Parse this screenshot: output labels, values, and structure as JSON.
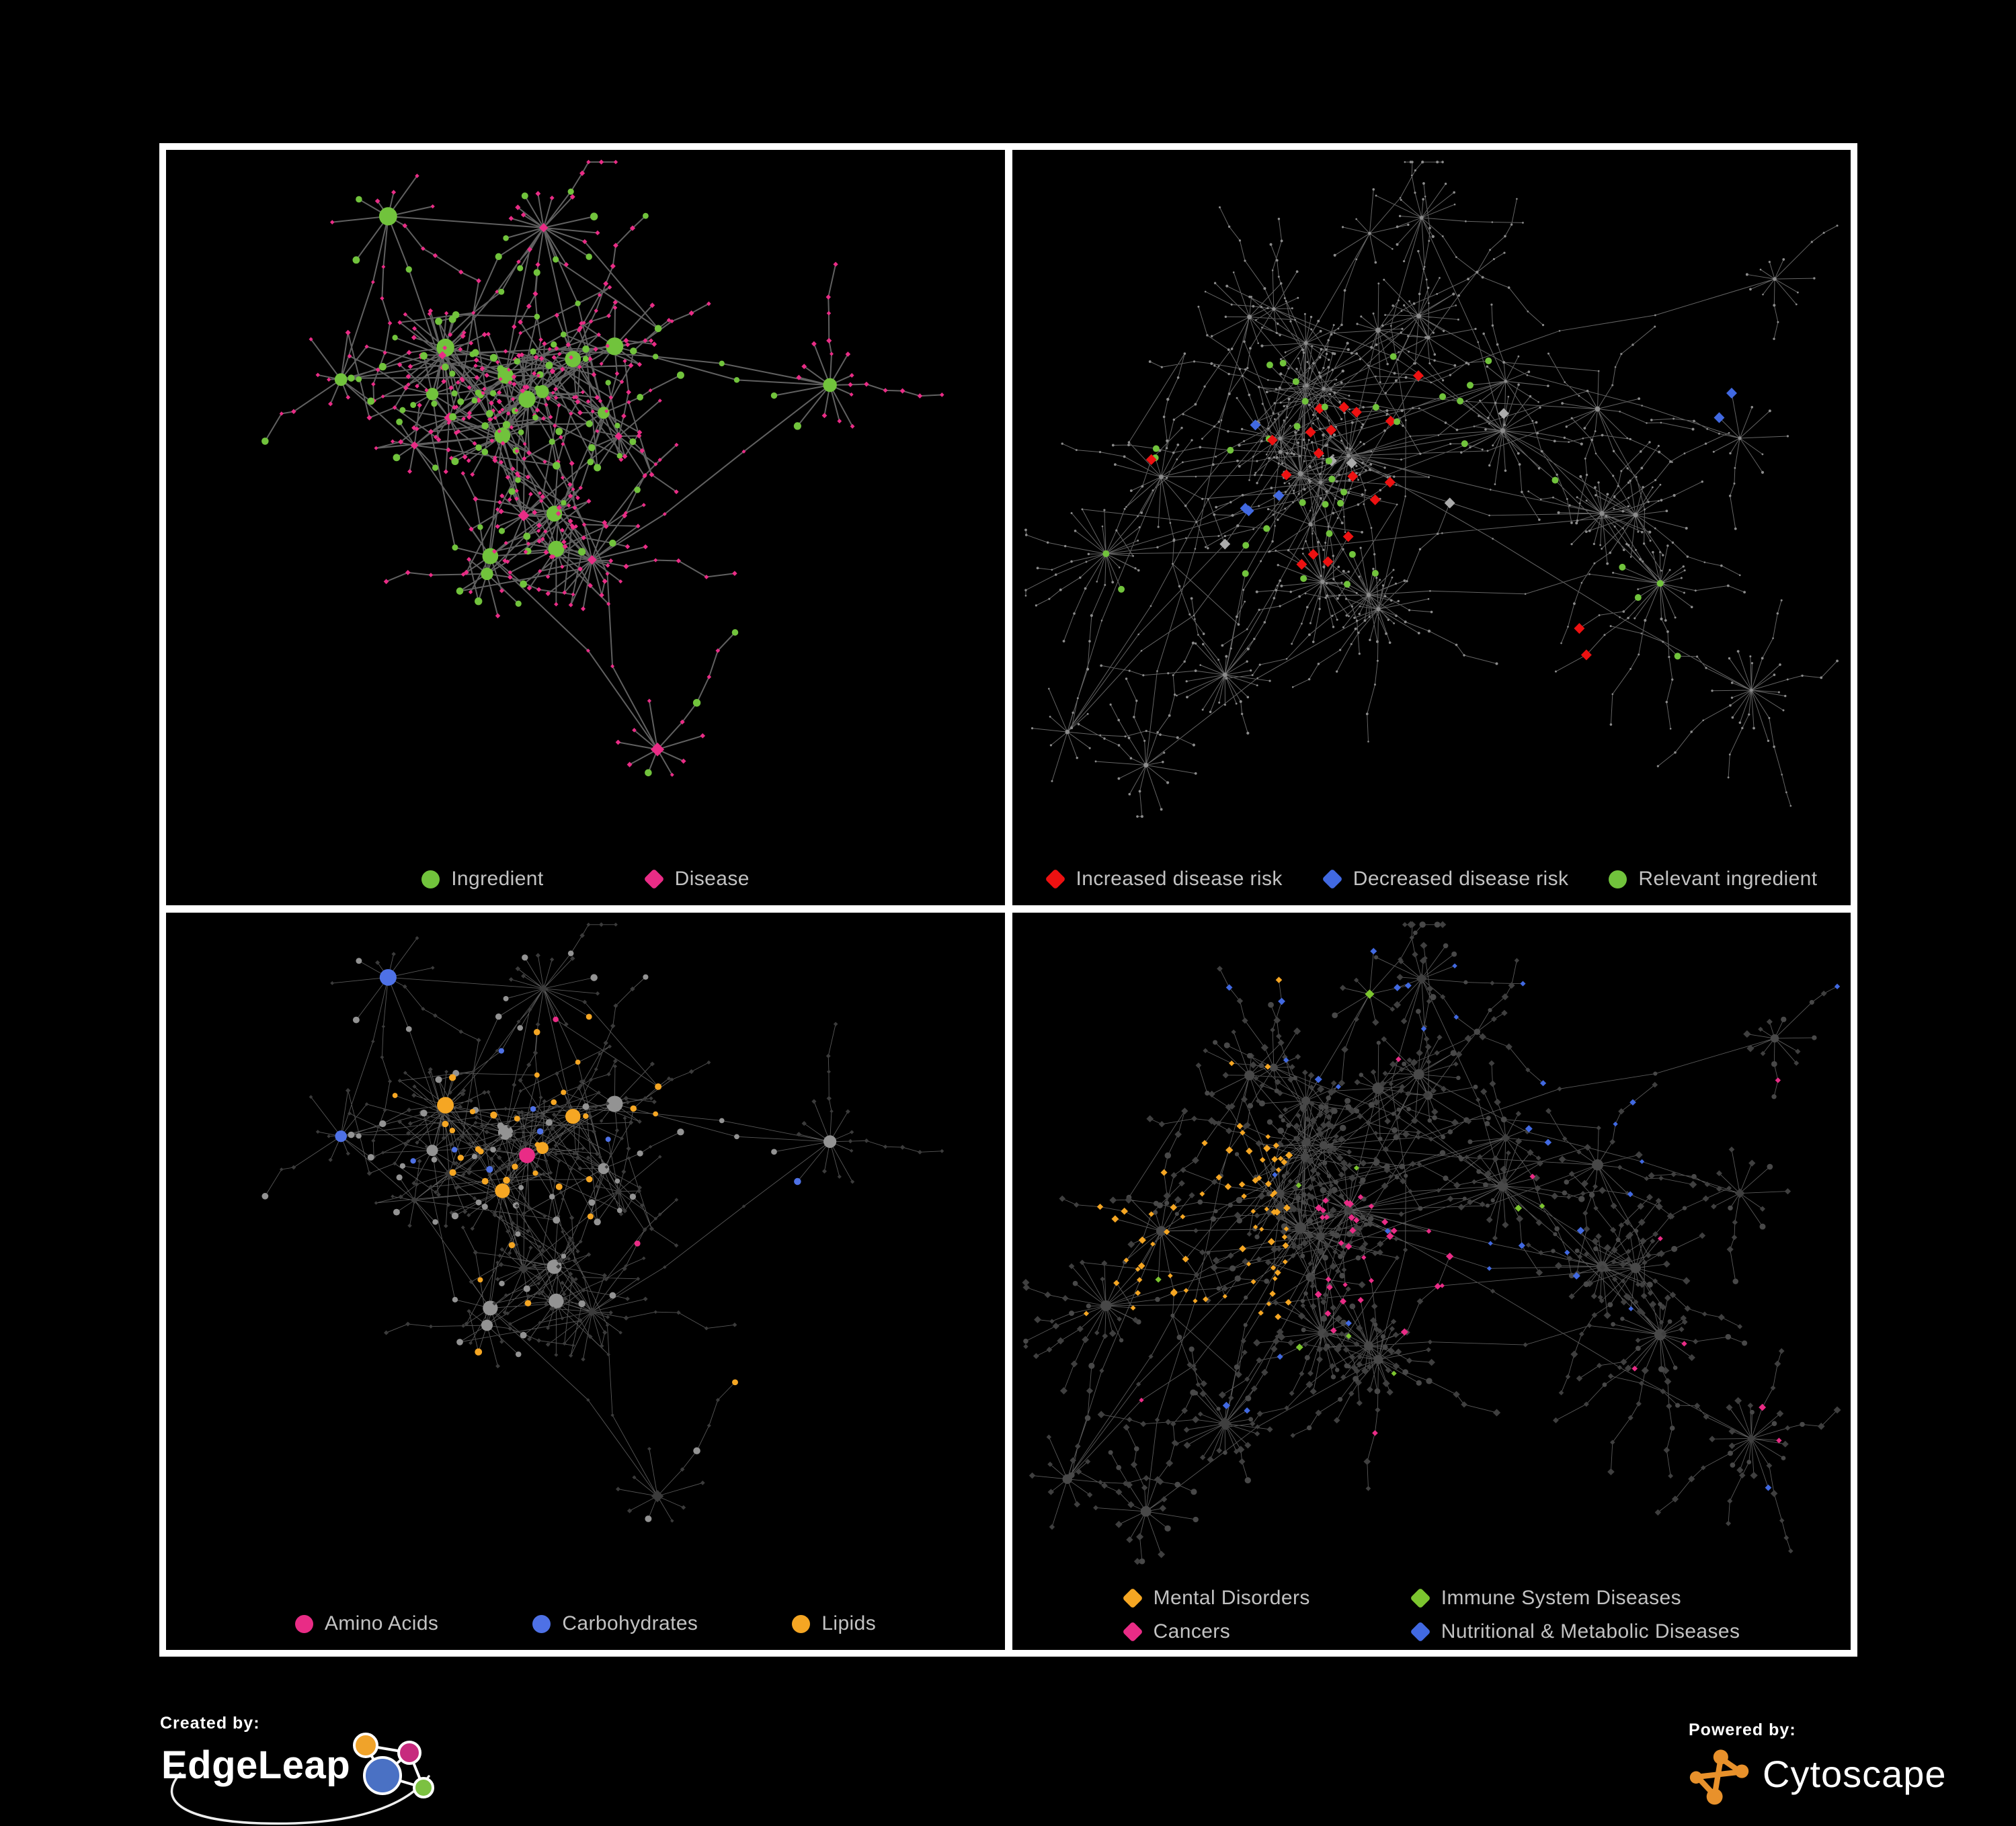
{
  "figure": {
    "panels": [
      {
        "name": "ingredient-disease-network",
        "legend": [
          {
            "label": "Ingredient",
            "shape": "circle",
            "color": "#71C33C"
          },
          {
            "label": "Disease",
            "shape": "diamond",
            "color": "#E92C86"
          }
        ]
      },
      {
        "name": "disease-risk-network",
        "legend": [
          {
            "label": "Increased disease risk",
            "shape": "diamond",
            "color": "#ED1111"
          },
          {
            "label": "Decreased disease risk",
            "shape": "diamond",
            "color": "#4169E1"
          },
          {
            "label": "Relevant ingredient",
            "shape": "circle",
            "color": "#71C33C"
          }
        ]
      },
      {
        "name": "nutrient-class-network",
        "legend": [
          {
            "label": "Amino Acids",
            "shape": "circle",
            "color": "#E92C86"
          },
          {
            "label": "Carbohydrates",
            "shape": "circle",
            "color": "#4E71E6"
          },
          {
            "label": "Lipids",
            "shape": "circle",
            "color": "#F5A623"
          }
        ]
      },
      {
        "name": "disease-category-network",
        "legend": [
          {
            "label": "Mental Disorders",
            "shape": "diamond",
            "color": "#F5A623"
          },
          {
            "label": "Immune System Diseases",
            "shape": "diamond",
            "color": "#7CC52F"
          },
          {
            "label": "Cancers",
            "shape": "diamond",
            "color": "#E92C86"
          },
          {
            "label": "Nutritional & Metabolic Diseases",
            "shape": "diamond",
            "color": "#4169E1"
          }
        ]
      }
    ],
    "footer": {
      "created_by_label": "Created by:",
      "created_by_name": "EdgeLeap",
      "powered_by_label": "Powered by:",
      "powered_by_name": "Cytoscape"
    },
    "colors": {
      "background": "#000000",
      "panel_border": "#FFFFFF",
      "legend_text": "#C2C2C2"
    }
  },
  "networks": {
    "layouts": {
      "A": {
        "seed": 41,
        "clusters": 24,
        "coreFrac": 0.55,
        "core": [
          0.4,
          0.42
        ],
        "coreR": 240,
        "leaf": [
          8,
          22
        ],
        "leafR": [
          26,
          85
        ],
        "subP": 0.18,
        "extraEdgeF": 0.45,
        "hubR": [
          5,
          9
        ],
        "leafSize": [
          2.6,
          3.6
        ]
      },
      "B": {
        "seed": 97,
        "clusters": 34,
        "coreFrac": 0.4,
        "core": [
          0.4,
          0.45
        ],
        "coreR": 260,
        "leaf": [
          8,
          26
        ],
        "leafR": [
          24,
          80
        ],
        "subP": 0.24,
        "extraEdgeF": 0.18,
        "hubR": [
          2.5,
          4
        ],
        "leafSize": [
          1.4,
          2.2
        ]
      }
    },
    "panels": [
      {
        "layout": "A",
        "styleSeed": 1001,
        "edge": {
          "color": "#6A6A6A",
          "width": 2.0,
          "opacity": 0.9
        },
        "default": {
          "ing": {
            "shape": "circle",
            "color": "#71C33C",
            "sizeMul": 1.6
          },
          "dis": {
            "shape": "diamond",
            "color": "#E92C86",
            "sizeMul": 1.15
          }
        },
        "rules": []
      },
      {
        "layout": "B",
        "styleSeed": 1002,
        "edge": {
          "color": "#7D7D7D",
          "width": 1.0,
          "opacity": 0.8
        },
        "default": {
          "ing": {
            "shape": "circle",
            "color": "#8C8C8C",
            "sizeMul": 1.0
          },
          "dis": {
            "shape": "circle",
            "color": "#8C8C8C",
            "sizeMul": 0.9
          }
        },
        "rules": [
          {
            "type": "dis",
            "region": [
              0.33,
              0.33,
              0.58,
              0.62
            ],
            "prob": 0.085,
            "shape": "diamond",
            "color": "#ED1111",
            "size": 8
          },
          {
            "type": "dis",
            "region": [
              0.56,
              0.38,
              0.68,
              0.62
            ],
            "prob": 0.05,
            "shape": "diamond",
            "color": "#ED1111",
            "size": 8
          },
          {
            "type": "dis",
            "region": [
              0.12,
              0.35,
              0.33,
              0.6
            ],
            "prob": 0.05,
            "shape": "diamond",
            "color": "#ED1111",
            "size": 8
          },
          {
            "type": "dis",
            "region": [
              0.6,
              0.62,
              0.78,
              0.8
            ],
            "prob": 0.04,
            "shape": "diamond",
            "color": "#ED1111",
            "size": 8
          },
          {
            "type": "dis",
            "region": [
              0.17,
              0.38,
              0.32,
              0.58
            ],
            "prob": 0.06,
            "shape": "diamond",
            "color": "#4169E1",
            "size": 8
          },
          {
            "type": "dis",
            "region": [
              0.79,
              0.3,
              0.88,
              0.42
            ],
            "prob": 0.2,
            "shape": "diamond",
            "color": "#4169E1",
            "size": 8
          },
          {
            "type": "dis",
            "region": [
              0.15,
              0.35,
              0.62,
              0.62
            ],
            "prob": 0.018,
            "shape": "diamond",
            "color": "#ABABAB",
            "size": 8
          },
          {
            "type": "ing",
            "region": [
              0.1,
              0.3,
              0.65,
              0.65
            ],
            "prob": 0.3,
            "shape": "circle",
            "color": "#71C33C",
            "size": 5
          },
          {
            "type": "ing",
            "region": [
              0.6,
              0.6,
              0.85,
              0.85
            ],
            "prob": 0.25,
            "shape": "circle",
            "color": "#71C33C",
            "size": 5
          }
        ]
      },
      {
        "layout": "A",
        "styleSeed": 1003,
        "edge": {
          "color": "#7D7D7D",
          "width": 0.9,
          "opacity": 0.7
        },
        "default": {
          "ing": {
            "shape": "circle",
            "color": "#939393",
            "sizeMul": 1.5
          },
          "dis": {
            "shape": "diamond",
            "color": "#3B3B3B",
            "sizeMul": 1.05
          }
        },
        "rules": [
          {
            "type": "ing",
            "region": [
              0.3,
              0.12,
              0.62,
              0.42
            ],
            "prob": 0.55,
            "shape": "circle",
            "color": "#F5A623",
            "sizeMul": 1.5
          },
          {
            "type": "ing",
            "region": [
              0.42,
              0.55,
              0.64,
              0.72
            ],
            "prob": 0.4,
            "shape": "circle",
            "color": "#F5A623",
            "sizeMul": 1.5
          },
          {
            "type": "ing",
            "region": [
              0.28,
              0.14,
              0.55,
              0.38
            ],
            "prob": 0.22,
            "shape": "circle",
            "color": "#4E71E6",
            "sizeMul": 1.5
          },
          {
            "type": "ing",
            "region": [
              0.62,
              0.55,
              0.85,
              0.75
            ],
            "prob": 0.12,
            "shape": "circle",
            "color": "#F5A623",
            "sizeMul": 1.5
          },
          {
            "type": "ing",
            "prob": 0.07,
            "shape": "circle",
            "color": "#E92C86",
            "sizeMul": 1.5
          },
          {
            "type": "ing",
            "prob": 0.04,
            "shape": "circle",
            "color": "#4E71E6",
            "sizeMul": 1.5
          },
          {
            "type": "ing",
            "prob": 0.1,
            "shape": "circle",
            "color": "#F5A623",
            "sizeMul": 1.5
          }
        ]
      },
      {
        "layout": "B",
        "styleSeed": 1004,
        "edge": {
          "color": "#8A8A8A",
          "width": 0.9,
          "opacity": 0.65
        },
        "default": {
          "ing": {
            "shape": "circle",
            "color": "#484848",
            "sizeMul": 2.2
          },
          "dis": {
            "shape": "diamond",
            "color": "#3F3F3F",
            "sizeMul": 2.6
          }
        },
        "rules": [
          {
            "type": "dis",
            "region": [
              0.08,
              0.32,
              0.33,
              0.62
            ],
            "prob": 0.5,
            "shape": "diamond",
            "color": "#F5A623",
            "sizeMul": 2.6
          },
          {
            "type": "dis",
            "region": [
              0.0,
              0.0,
              0.35,
              0.32
            ],
            "prob": 0.07,
            "shape": "diamond",
            "color": "#F5A623",
            "sizeMul": 2.6
          },
          {
            "type": "dis",
            "region": [
              0.36,
              0.42,
              0.56,
              0.64
            ],
            "prob": 0.3,
            "shape": "diamond",
            "color": "#E92C86",
            "sizeMul": 2.6
          },
          {
            "type": "dis",
            "region": [
              0.4,
              0.75,
              0.56,
              0.88
            ],
            "prob": 0.22,
            "shape": "diamond",
            "color": "#E92C86",
            "sizeMul": 2.6
          },
          {
            "type": "dis",
            "region": [
              0.82,
              0.22,
              0.95,
              0.34
            ],
            "prob": 0.3,
            "shape": "diamond",
            "color": "#E92C86",
            "sizeMul": 2.6
          },
          {
            "type": "dis",
            "region": [
              0.52,
              0.5,
              0.62,
              0.64
            ],
            "prob": 0.45,
            "shape": "diamond",
            "color": "#4169E1",
            "sizeMul": 2.6
          },
          {
            "type": "dis",
            "region": [
              0.6,
              0.08,
              0.88,
              0.45
            ],
            "prob": 0.13,
            "shape": "diamond",
            "color": "#4169E1",
            "sizeMul": 2.6
          },
          {
            "type": "dis",
            "region": [
              0.12,
              0.04,
              0.55,
              0.25
            ],
            "prob": 0.1,
            "shape": "diamond",
            "color": "#4169E1",
            "sizeMul": 2.6
          },
          {
            "type": "dis",
            "prob": 0.02,
            "shape": "diamond",
            "color": "#4169E1",
            "sizeMul": 2.6
          },
          {
            "type": "dis",
            "region": [
              0.3,
              0.3,
              0.6,
              0.7
            ],
            "prob": 0.02,
            "shape": "diamond",
            "color": "#7CC52F",
            "sizeMul": 2.6
          },
          {
            "type": "dis",
            "prob": 0.008,
            "shape": "diamond",
            "color": "#7CC52F",
            "sizeMul": 2.6
          },
          {
            "type": "dis",
            "prob": 0.012,
            "shape": "diamond",
            "color": "#E92C86",
            "sizeMul": 2.6
          }
        ]
      }
    ]
  }
}
